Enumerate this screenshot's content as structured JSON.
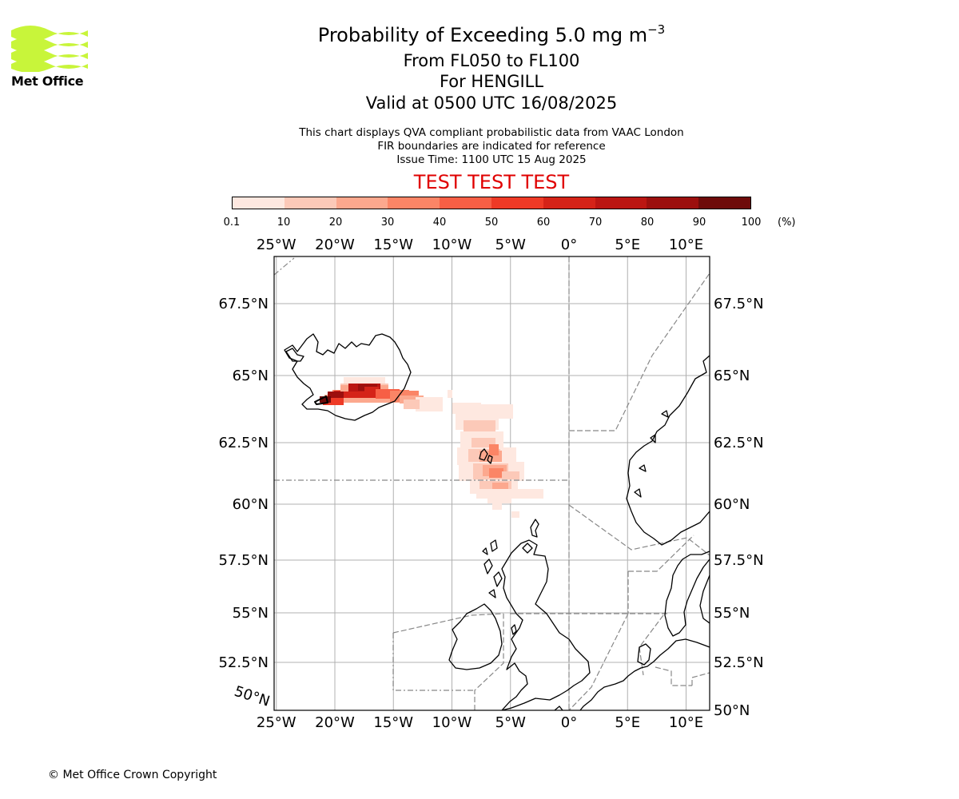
{
  "logo": {
    "text": "Met Office",
    "brand_color": "#c8f53a"
  },
  "header": {
    "title_main": "Probability of Exceeding 5.0 mg m",
    "title_exponent": "−3",
    "subtitle_levels": "From FL050 to FL100",
    "subtitle_location": "For HENGILL",
    "subtitle_valid": "Valid at 0500 UTC 16/08/2025",
    "description_1": "This chart displays QVA compliant probabilistic data from VAAC London",
    "description_2": "FIR boundaries are indicated for reference",
    "description_3": "Issue Time: 1100 UTC 15 Aug 2025",
    "test_banner": "TEST TEST TEST",
    "test_banner_color": "#e00000"
  },
  "colorbar": {
    "labels": [
      "0.1",
      "10",
      "20",
      "30",
      "40",
      "50",
      "60",
      "70",
      "80",
      "90",
      "100"
    ],
    "unit": "(%)",
    "colors": [
      "#fee8e0",
      "#fcc9b8",
      "#fca88e",
      "#fb8566",
      "#f75f45",
      "#ee3a26",
      "#d52318",
      "#bb1612",
      "#9c0f0d",
      "#6e0b0a"
    ]
  },
  "map": {
    "top_lon_labels": [
      "25°W",
      "20°W",
      "15°W",
      "10°W",
      "5°W",
      "0°",
      "5°E",
      "10°E"
    ],
    "bottom_lon_labels": [
      "25°W",
      "20°W",
      "15°W",
      "10°W",
      "5°W",
      "0°",
      "5°E",
      "10°E"
    ],
    "left_lat_labels": [
      "67.5°N",
      "65°N",
      "62.5°N",
      "60°N",
      "57.5°N",
      "55°N",
      "52.5°N",
      "50°N"
    ],
    "right_lat_labels": [
      "67.5°N",
      "65°N",
      "62.5°N",
      "60°N",
      "57.5°N",
      "55°N",
      "52.5°N",
      "50°N"
    ],
    "lon_values": [
      -25,
      -20,
      -15,
      -10,
      -5,
      0,
      5,
      10
    ],
    "lat_values": [
      67.5,
      65,
      62.5,
      60,
      57.5,
      55,
      52.5,
      50
    ],
    "source_volcano": "HENGILL",
    "coastline_color": "#000000",
    "fir_boundary_color": "#888888",
    "gridline_color": "#b0b0b0"
  },
  "footer": {
    "copyright": "© Met Office Crown Copyright"
  }
}
